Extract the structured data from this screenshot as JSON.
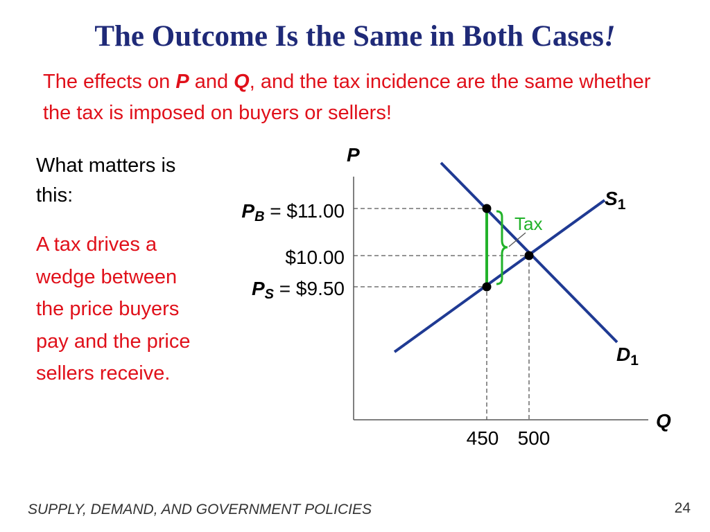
{
  "slide": {
    "title_main": "The Outcome Is the Same in Both Cases",
    "title_bang": "!",
    "subtitle": {
      "part1": "The effects on ",
      "p": "P",
      "part2": " and ",
      "q": "Q",
      "part3": ", and the tax incidence are the same whether the tax is imposed on buyers or sellers!"
    },
    "left_heading": "What matters is this:",
    "left_body": "A tax drives a wedge between the price buyers pay and the price sellers receive.",
    "footer_title": "SUPPLY, DEMAND, AND GOVERNMENT POLICIES",
    "page_number": "24"
  },
  "graph": {
    "axis_p": "P",
    "axis_q": "Q",
    "supply_label": {
      "letter": "S",
      "sub": "1"
    },
    "demand_label": {
      "letter": "D",
      "sub": "1"
    },
    "tax_label": "Tax",
    "price_buyers": {
      "sym": "P",
      "sub": "B",
      "rest": " = $11.00",
      "value": 11.0
    },
    "price_equilibrium": {
      "text": "$10.00",
      "value": 10.0
    },
    "price_sellers": {
      "sym": "P",
      "sub": "S",
      "rest": " = $9.50",
      "value": 9.5
    },
    "q_tax": {
      "text": "450",
      "value": 450
    },
    "q_equilibrium": {
      "text": "500",
      "value": 500
    },
    "colors": {
      "curve": "#1f3a93",
      "tax_wedge": "#22b22a",
      "title": "#1f2a78",
      "accent_text": "#e0101a"
    }
  }
}
